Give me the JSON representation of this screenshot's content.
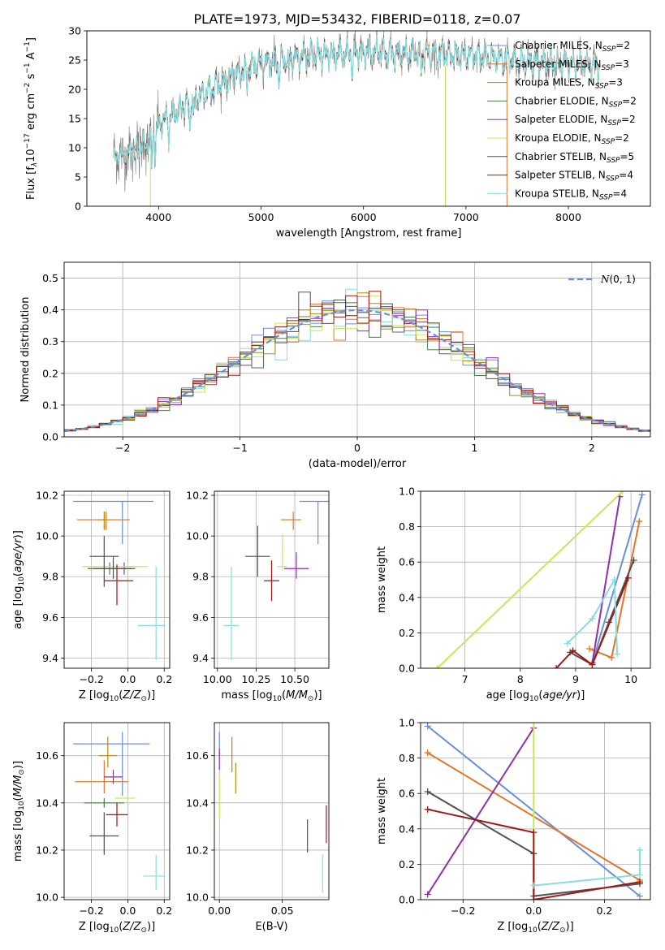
{
  "figure": {
    "title": "PLATE=1973, MJD=53432, FIBERID=0118, z=0.07"
  },
  "series": [
    {
      "name": "Chabrier MILES, N_SSP=2",
      "label_main": "Chabrier MILES, N",
      "label_sub": "SSP",
      "label_tail": "=2",
      "color": "#6a8fd8"
    },
    {
      "name": "Salpeter MILES, N_SSP=3",
      "label_main": "Salpeter MILES, N",
      "label_sub": "SSP",
      "label_tail": "=3",
      "color": "#e3752a"
    },
    {
      "name": "Kroupa MILES, N_SSP=3",
      "label_main": "Kroupa MILES, N",
      "label_sub": "SSP",
      "label_tail": "=3",
      "color": "#b8860b"
    },
    {
      "name": "Chabrier ELODIE, N_SSP=2",
      "label_main": "Chabrier ELODIE, N",
      "label_sub": "SSP",
      "label_tail": "=2",
      "color": "#4a7a4a"
    },
    {
      "name": "Salpeter ELODIE, N_SSP=2",
      "label_main": "Salpeter ELODIE, N",
      "label_sub": "SSP",
      "label_tail": "=2",
      "color": "#8e2fae"
    },
    {
      "name": "Kroupa ELODIE, N_SSP=2",
      "label_main": "Kroupa ELODIE, N",
      "label_sub": "SSP",
      "label_tail": "=2",
      "color": "#c8e65a"
    },
    {
      "name": "Chabrier STELIB, N_SSP=5",
      "label_main": "Chabrier STELIB, N",
      "label_sub": "SSP",
      "label_tail": "=5",
      "color": "#505050"
    },
    {
      "name": "Salpeter STELIB, N_SSP=4",
      "label_main": "Salpeter STELIB, N",
      "label_sub": "SSP",
      "label_tail": "=4",
      "color": "#a01818"
    },
    {
      "name": "Kroupa STELIB, N_SSP=4",
      "label_main": "Kroupa STELIB, N",
      "label_sub": "SSP",
      "label_tail": "=4",
      "color": "#86dde0"
    }
  ],
  "chart_data": [
    {
      "id": "spectrum",
      "type": "line",
      "xlabel": "wavelength [Angstrom, rest frame]",
      "ylabel": "Flux [f_λ 10^-17 erg cm^-2 s^-1 A^-1]",
      "xlim": [
        3300,
        8800
      ],
      "ylim": [
        0,
        30
      ],
      "xticks": [
        4000,
        5000,
        6000,
        7000,
        8000
      ],
      "yticks": [
        0,
        5,
        10,
        15,
        20,
        25,
        30
      ],
      "continuum_shape": [
        [
          3560,
          8.5
        ],
        [
          3700,
          9
        ],
        [
          3900,
          11
        ],
        [
          4000,
          14
        ],
        [
          4200,
          16.5
        ],
        [
          4500,
          20
        ],
        [
          4800,
          23
        ],
        [
          5000,
          24.5
        ],
        [
          5500,
          25.8
        ],
        [
          6000,
          26.3
        ],
        [
          6500,
          26.2
        ],
        [
          7000,
          25.8
        ],
        [
          7500,
          25
        ],
        [
          8000,
          24.3
        ],
        [
          8300,
          24
        ]
      ],
      "data_spectrum_color": "#7a7a7a",
      "model_spectrum_color": "#86dde0",
      "legend_loc": "right"
    },
    {
      "id": "residuals",
      "type": "histogram",
      "xlabel": "(data-model)/error",
      "ylabel": "Normed distribution",
      "xlim": [
        -2.5,
        2.5
      ],
      "ylim": [
        0,
        0.55
      ],
      "xticks": [
        -2,
        -1,
        0,
        1,
        2
      ],
      "yticks": [
        0.0,
        0.1,
        0.2,
        0.3,
        0.4,
        0.5
      ],
      "bin_width": 0.1,
      "reference": {
        "label": "N(0,1)",
        "type": "gaussian",
        "mean": 0,
        "sigma": 1,
        "color": "#6a8fd8"
      },
      "legend_loc": "upper right",
      "grid": true
    },
    {
      "id": "age_vs_Z",
      "type": "errorbar",
      "xlabel": "Z [log10(Z/Z⊙)]",
      "ylabel": "age [log10(age/yr)]",
      "xlim": [
        -0.35,
        0.23
      ],
      "ylim": [
        9.35,
        10.22
      ],
      "xticks": [
        -0.2,
        0.0,
        0.2
      ],
      "yticks": [
        9.4,
        9.6,
        9.8,
        10.0,
        10.2
      ],
      "points": [
        {
          "s": 0,
          "x": -0.03,
          "xerr": [
            0.27,
            0.17
          ],
          "y": 10.17,
          "yerr": [
            0.21,
            0.0
          ]
        },
        {
          "s": 1,
          "x": -0.12,
          "xerr": [
            0.16,
            0.13
          ],
          "y": 10.08,
          "yerr": [
            0.05,
            0.04
          ]
        },
        {
          "s": 2,
          "x": -0.13,
          "xerr": [
            0.04,
            0.04
          ],
          "y": 10.08,
          "yerr": [
            0.05,
            0.04
          ]
        },
        {
          "s": 3,
          "x": -0.1,
          "xerr": [
            0.12,
            0.12
          ],
          "y": 9.84,
          "yerr": [
            0.03,
            0.03
          ]
        },
        {
          "s": 4,
          "x": -0.02,
          "xerr": [
            0.03,
            0.04
          ],
          "y": 9.84,
          "yerr": [
            0.03,
            0.03
          ]
        },
        {
          "s": 5,
          "x": 0.0,
          "xerr": [
            0.25,
            0.11
          ],
          "y": 9.85,
          "yerr": [
            0.02,
            0.02
          ]
        },
        {
          "s": 6,
          "x": -0.08,
          "xerr": [
            0.11,
            0.12
          ],
          "y": 9.84,
          "yerr": [
            0.05,
            0.06
          ]
        },
        {
          "s": 6,
          "x": -0.13,
          "xerr": [
            0.08,
            0.08
          ],
          "y": 9.9,
          "yerr": [
            0.15,
            0.1
          ]
        },
        {
          "s": 7,
          "x": -0.06,
          "xerr": [
            0.07,
            0.09
          ],
          "y": 9.78,
          "yerr": [
            0.12,
            0.08
          ]
        },
        {
          "s": 8,
          "x": 0.155,
          "xerr": [
            0.1,
            0.05
          ],
          "y": 9.56,
          "yerr": [
            0.17,
            0.29
          ]
        }
      ],
      "grid": true
    },
    {
      "id": "age_vs_mass",
      "type": "errorbar",
      "xlabel": "mass [log10(M/M⊙)]",
      "ylabel": "",
      "xlim": [
        9.98,
        10.72
      ],
      "ylim": [
        9.35,
        10.22
      ],
      "xticks": [
        10.0,
        10.25,
        10.5
      ],
      "tick_labels": [
        "10.00",
        "10.25",
        "10.50"
      ],
      "yticks": [
        9.4,
        9.6,
        9.8,
        10.0,
        10.2
      ],
      "points": [
        {
          "s": 0,
          "x": 10.65,
          "xerr": [
            0.12,
            0.1
          ],
          "y": 10.17,
          "yerr": [
            0.21,
            0.0
          ]
        },
        {
          "s": 1,
          "x": 10.49,
          "xerr": [
            0.08,
            0.05
          ],
          "y": 10.08,
          "yerr": [
            0.05,
            0.04
          ]
        },
        {
          "s": 4,
          "x": 10.51,
          "xerr": [
            0.08,
            0.08
          ],
          "y": 9.84,
          "yerr": [
            0.05,
            0.08
          ]
        },
        {
          "s": 5,
          "x": 10.42,
          "xerr": [
            0.03,
            0.03
          ],
          "y": 9.85,
          "yerr": [
            0.02,
            0.16
          ]
        },
        {
          "s": 6,
          "x": 10.26,
          "xerr": [
            0.08,
            0.08
          ],
          "y": 9.9,
          "yerr": [
            0.1,
            0.15
          ]
        },
        {
          "s": 7,
          "x": 10.35,
          "xerr": [
            0.05,
            0.05
          ],
          "y": 9.78,
          "yerr": [
            0.1,
            0.1
          ]
        },
        {
          "s": 8,
          "x": 10.09,
          "xerr": [
            0.05,
            0.05
          ],
          "y": 9.56,
          "yerr": [
            0.17,
            0.29
          ]
        }
      ],
      "grid": true
    },
    {
      "id": "weight_vs_age",
      "type": "line",
      "xlabel": "age [log10(age/yr)]",
      "ylabel": "mass weight",
      "xlim": [
        6.2,
        10.35
      ],
      "ylim": [
        0,
        1
      ],
      "xticks": [
        7,
        8,
        9,
        10
      ],
      "yticks": [
        0.0,
        0.2,
        0.4,
        0.6,
        0.8,
        1.0
      ],
      "series_points": [
        {
          "s": 0,
          "pts": [
            [
              9.3,
              0.03
            ],
            [
              10.2,
              0.98
            ]
          ]
        },
        {
          "s": 1,
          "pts": [
            [
              9.25,
              0.11
            ],
            [
              9.65,
              0.06
            ],
            [
              10.15,
              0.83
            ]
          ]
        },
        {
          "s": 4,
          "pts": [
            [
              9.3,
              0.03
            ],
            [
              9.8,
              0.97
            ]
          ]
        },
        {
          "s": 5,
          "pts": [
            [
              6.5,
              0.0
            ],
            [
              9.85,
              1.0
            ]
          ]
        },
        {
          "s": 6,
          "pts": [
            [
              8.9,
              0.09
            ],
            [
              9.3,
              0.02
            ],
            [
              9.6,
              0.26
            ],
            [
              10.05,
              0.61
            ]
          ]
        },
        {
          "s": 7,
          "pts": [
            [
              8.65,
              0.0
            ],
            [
              8.95,
              0.1
            ],
            [
              9.3,
              0.02
            ],
            [
              9.95,
              0.51
            ]
          ]
        },
        {
          "s": 8,
          "pts": [
            [
              8.85,
              0.14
            ],
            [
              9.3,
              0.28
            ],
            [
              9.7,
              0.5
            ],
            [
              9.75,
              0.08
            ]
          ]
        }
      ],
      "grid": true
    },
    {
      "id": "mass_vs_Z",
      "type": "errorbar",
      "xlabel": "Z [log10(Z/Z⊙)]",
      "ylabel": "mass [log10(M/M⊙)]",
      "xlim": [
        -0.35,
        0.23
      ],
      "ylim": [
        9.99,
        10.74
      ],
      "xticks": [
        -0.2,
        0.0,
        0.2
      ],
      "yticks": [
        10.0,
        10.2,
        10.4,
        10.6
      ],
      "points": [
        {
          "s": 0,
          "x": -0.03,
          "xerr": [
            0.27,
            0.15
          ],
          "y": 10.65,
          "yerr": [
            0.22,
            0.05
          ]
        },
        {
          "s": 1,
          "x": -0.13,
          "xerr": [
            0.16,
            0.13
          ],
          "y": 10.49,
          "yerr": [
            0.05,
            0.09
          ]
        },
        {
          "s": 2,
          "x": -0.11,
          "xerr": [
            0.05,
            0.05
          ],
          "y": 10.6,
          "yerr": [
            0.05,
            0.08
          ]
        },
        {
          "s": 4,
          "x": -0.08,
          "xerr": [
            0.05,
            0.05
          ],
          "y": 10.51,
          "yerr": [
            0.03,
            0.03
          ]
        },
        {
          "s": 5,
          "x": 0.0,
          "xerr": [
            0.07,
            0.04
          ],
          "y": 10.42,
          "yerr": [
            0.02,
            0.02
          ]
        },
        {
          "s": 3,
          "x": -0.13,
          "xerr": [
            0.11,
            0.11
          ],
          "y": 10.4,
          "yerr": [
            0.02,
            0.02
          ]
        },
        {
          "s": 6,
          "x": -0.13,
          "xerr": [
            0.08,
            0.08
          ],
          "y": 10.26,
          "yerr": [
            0.08,
            0.1
          ]
        },
        {
          "s": 7,
          "x": -0.06,
          "xerr": [
            0.06,
            0.06
          ],
          "y": 10.35,
          "yerr": [
            0.05,
            0.05
          ]
        },
        {
          "s": 8,
          "x": 0.155,
          "xerr": [
            0.07,
            0.05
          ],
          "y": 10.09,
          "yerr": [
            0.06,
            0.09
          ]
        }
      ],
      "grid": true
    },
    {
      "id": "mass_vs_EBV",
      "type": "errorbar",
      "xlabel": "E(B-V)",
      "ylabel": "",
      "xlim": [
        -0.004,
        0.087
      ],
      "ylim": [
        9.99,
        10.74
      ],
      "xticks": [
        0.0,
        0.05
      ],
      "tick_labels": [
        "0.00",
        "0.05"
      ],
      "yticks": [
        10.0,
        10.2,
        10.4,
        10.6
      ],
      "points": [
        {
          "s": 0,
          "x": 0.0,
          "xerr": [
            0,
            0
          ],
          "y": 10.65,
          "yerr": [
            0.05,
            0.05
          ]
        },
        {
          "s": 4,
          "x": 0.0,
          "xerr": [
            0,
            0
          ],
          "y": 10.58,
          "yerr": [
            0.04,
            0.05
          ]
        },
        {
          "s": 5,
          "x": 0.0,
          "xerr": [
            0,
            0
          ],
          "y": 10.42,
          "yerr": [
            0.09,
            0.09
          ]
        },
        {
          "s": 2,
          "x": 0.013,
          "xerr": [
            0,
            0
          ],
          "y": 10.51,
          "yerr": [
            0.07,
            0.06
          ]
        },
        {
          "s": 2,
          "x": 0.01,
          "xerr": [
            0,
            0
          ],
          "y": 10.6,
          "yerr": [
            0.07,
            0.08
          ]
        },
        {
          "s": 6,
          "x": 0.07,
          "xerr": [
            0,
            0
          ],
          "y": 10.26,
          "yerr": [
            0.07,
            0.07
          ]
        },
        {
          "s": 7,
          "x": 0.085,
          "xerr": [
            0,
            0
          ],
          "y": 10.31,
          "yerr": [
            0.08,
            0.08
          ]
        },
        {
          "s": 8,
          "x": 0.082,
          "xerr": [
            0,
            0
          ],
          "y": 10.09,
          "yerr": [
            0.07,
            0.09
          ]
        }
      ],
      "grid": true
    },
    {
      "id": "weight_vs_Z",
      "type": "line",
      "xlabel": "Z [log10(Z/Z⊙)]",
      "ylabel": "mass weight",
      "xlim": [
        -0.32,
        0.33
      ],
      "ylim": [
        0,
        1
      ],
      "xticks": [
        -0.2,
        0.0,
        0.2
      ],
      "yticks": [
        0.0,
        0.2,
        0.4,
        0.6,
        0.8,
        1.0
      ],
      "series_points": [
        {
          "s": 0,
          "pts": [
            [
              -0.3,
              0.98
            ],
            [
              0.3,
              0.02
            ]
          ]
        },
        {
          "s": 1,
          "pts": [
            [
              -0.3,
              0.83
            ],
            [
              0.3,
              0.11
            ]
          ]
        },
        {
          "s": 4,
          "pts": [
            [
              -0.3,
              0.03
            ],
            [
              0.0,
              0.97
            ]
          ]
        },
        {
          "s": 5,
          "pts": [
            [
              0.0,
              0.0
            ],
            [
              0.0,
              1.0
            ]
          ]
        },
        {
          "s": 6,
          "pts": [
            [
              -0.3,
              0.61
            ],
            [
              0.0,
              0.26
            ],
            [
              0.0,
              0.02
            ],
            [
              0.3,
              0.09
            ]
          ]
        },
        {
          "s": 7,
          "pts": [
            [
              -0.3,
              0.51
            ],
            [
              0.0,
              0.38
            ],
            [
              0.0,
              0.0
            ],
            [
              0.3,
              0.1
            ]
          ]
        },
        {
          "s": 8,
          "pts": [
            [
              0.0,
              0.08
            ],
            [
              0.3,
              0.14
            ],
            [
              0.3,
              0.28
            ]
          ]
        }
      ],
      "grid": true
    }
  ]
}
